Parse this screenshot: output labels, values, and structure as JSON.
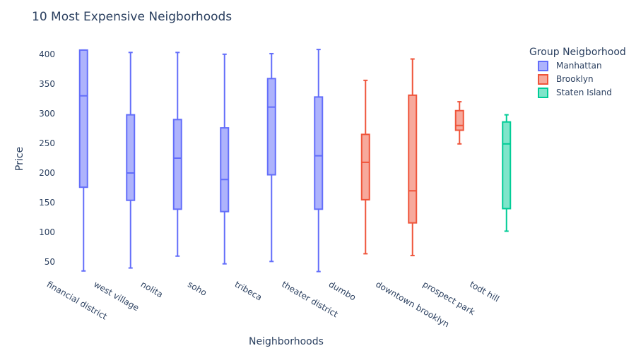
{
  "chart_data": {
    "type": "box",
    "title": "10 Most Expensive Neigborhoods",
    "xlabel": "Neighborhoods",
    "ylabel": "Price",
    "ylim": [
      30,
      420
    ],
    "yticks": [
      50,
      100,
      150,
      200,
      250,
      300,
      350,
      400
    ],
    "grid": false,
    "legend": {
      "title": "Group Neigborhood",
      "placement": "top-right",
      "entries": [
        {
          "name": "Manhattan",
          "color": "#636efa",
          "fill": "#aeb3fc"
        },
        {
          "name": "Brooklyn",
          "color": "#ef553b",
          "fill": "#f7a99c"
        },
        {
          "name": "Staten Island",
          "color": "#00cc96",
          "fill": "#7fe5ca"
        }
      ]
    },
    "categories": [
      "financial district",
      "west village",
      "nolita",
      "soho",
      "tribeca",
      "theater district",
      "dumbo",
      "downtown brooklyn",
      "prospect park",
      "todt hill"
    ],
    "boxes": [
      {
        "category": "financial district",
        "group": "Manhattan",
        "min": 35,
        "q1": 176,
        "median": 330,
        "q3": 407,
        "max": 407
      },
      {
        "category": "west village",
        "group": "Manhattan",
        "min": 40,
        "q1": 154,
        "median": 200,
        "q3": 298,
        "max": 403
      },
      {
        "category": "nolita",
        "group": "Manhattan",
        "min": 60,
        "q1": 139,
        "median": 225,
        "q3": 290,
        "max": 403
      },
      {
        "category": "soho",
        "group": "Manhattan",
        "min": 47,
        "q1": 135,
        "median": 189,
        "q3": 276,
        "max": 400
      },
      {
        "category": "tribeca",
        "group": "Manhattan",
        "min": 51,
        "q1": 197,
        "median": 311,
        "q3": 359,
        "max": 401
      },
      {
        "category": "theater district",
        "group": "Manhattan",
        "min": 34,
        "q1": 139,
        "median": 229,
        "q3": 328,
        "max": 408
      },
      {
        "category": "dumbo",
        "group": "Brooklyn",
        "min": 64,
        "q1": 155,
        "median": 218,
        "q3": 265,
        "max": 356
      },
      {
        "category": "downtown brooklyn",
        "group": "Brooklyn",
        "min": 61,
        "q1": 116,
        "median": 170,
        "q3": 331,
        "max": 392
      },
      {
        "category": "prospect park",
        "group": "Brooklyn",
        "min": 249,
        "q1": 272,
        "median": 280,
        "q3": 305,
        "max": 320
      },
      {
        "category": "todt hill",
        "group": "Staten Island",
        "min": 102,
        "q1": 140,
        "median": 249,
        "q3": 286,
        "max": 298
      }
    ]
  }
}
